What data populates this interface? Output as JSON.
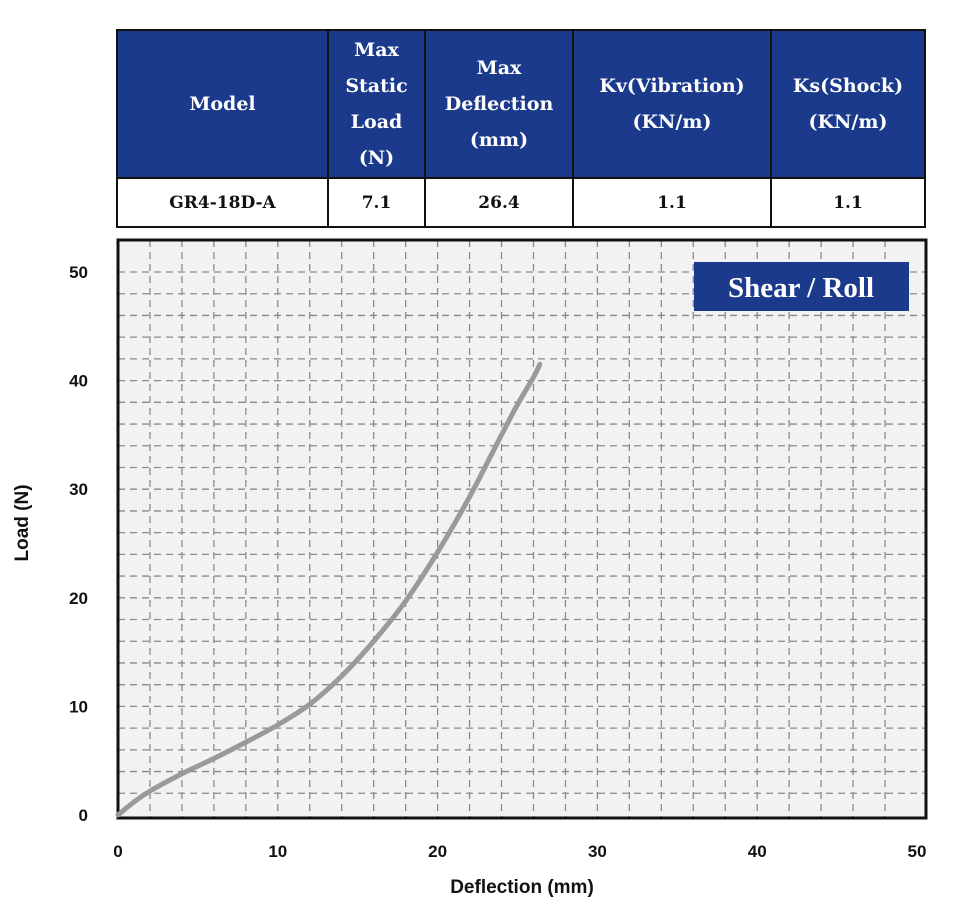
{
  "table": {
    "headers": [
      [
        "Model"
      ],
      [
        "Max",
        "Static",
        "Load",
        "(N)"
      ],
      [
        "Max",
        "Deflection",
        "(mm)"
      ],
      [
        "Kv(Vibration)",
        "(KN/m)"
      ],
      [
        "Ks(Shock)",
        "(KN/m)"
      ]
    ],
    "row": [
      "GR4-18D-A",
      "7.1",
      "26.4",
      "1.1",
      "1.1"
    ]
  },
  "colors": {
    "header_bg": "#1c3a8c",
    "curve": "#9a9a9a",
    "grid": "#8a8a8a",
    "badge_bg": "#1c3a8c"
  },
  "chart_data": {
    "type": "line",
    "badge": "Shear / Roll",
    "xlabel": "Deflection (mm)",
    "ylabel": "Load (N)",
    "xlim": [
      0,
      50
    ],
    "ylim": [
      0,
      50
    ],
    "x_ticks": [
      "0",
      "10",
      "20",
      "30",
      "40",
      "50"
    ],
    "y_ticks": [
      "0",
      "10",
      "20",
      "30",
      "40",
      "50"
    ],
    "grid": true,
    "series": [
      {
        "x": [
          0,
          1,
          2,
          4,
          6,
          8,
          10,
          12,
          14,
          16,
          18,
          20,
          22,
          24,
          25,
          26,
          26.4
        ],
        "y": [
          0,
          1.2,
          2.2,
          3.8,
          5.2,
          6.7,
          8.3,
          10.2,
          12.8,
          16,
          19.7,
          24.2,
          29.3,
          35,
          37.8,
          40.3,
          41.5
        ]
      }
    ]
  }
}
